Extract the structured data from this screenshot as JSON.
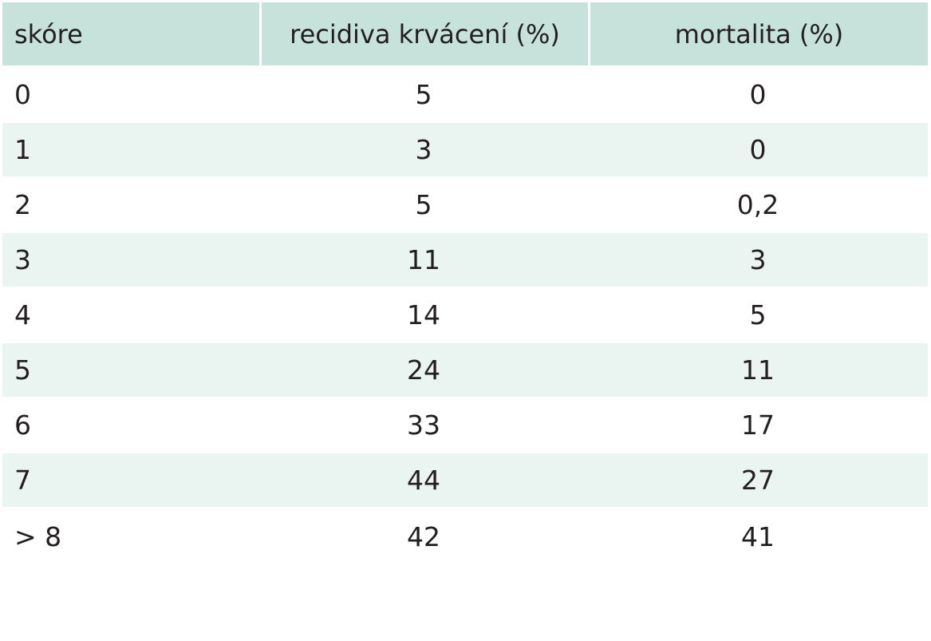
{
  "table": {
    "headers": [
      "skóre",
      "recidiva krvácení (%)",
      "mortalita (%)"
    ],
    "rows": [
      [
        "0",
        "5",
        "0"
      ],
      [
        "1",
        "3",
        "0"
      ],
      [
        "2",
        "5",
        "0,2"
      ],
      [
        "3",
        "11",
        "3"
      ],
      [
        "4",
        "14",
        "5"
      ],
      [
        "5",
        "24",
        "11"
      ],
      [
        "6",
        "33",
        "17"
      ],
      [
        "7",
        "44",
        "27"
      ],
      [
        "> 8",
        "42",
        "41"
      ]
    ]
  },
  "colors": {
    "header_bg": "#c6e2da",
    "stripe_bg": "#eaf4f1",
    "text": "#231f20"
  }
}
